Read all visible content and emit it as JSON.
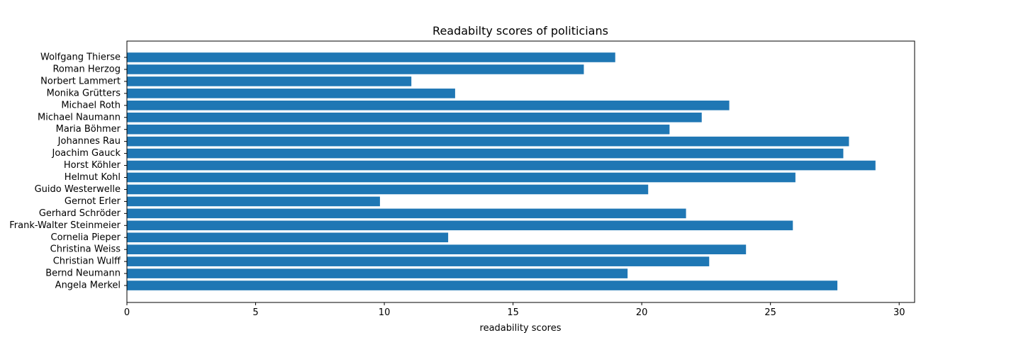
{
  "chart_data": {
    "type": "bar",
    "orientation": "horizontal",
    "title": "Readabilty scores of politicians",
    "xlabel": "readability scores",
    "ylabel": "",
    "xlim": [
      0,
      30.6
    ],
    "xticks": [
      0,
      5,
      10,
      15,
      20,
      25,
      30
    ],
    "xtick_labels": [
      "0",
      "5",
      "10",
      "15",
      "20",
      "25",
      "30"
    ],
    "grid": false,
    "legend": "none",
    "bar_color": "#1f77b4",
    "categories": [
      "Wolfgang Thierse",
      "Roman Herzog",
      "Norbert Lammert",
      "Monika Grütters",
      "Michael Roth",
      "Michael Naumann",
      "Maria Böhmer",
      "Johannes Rau",
      "Joachim Gauck",
      "Horst Köhler",
      "Helmut Kohl",
      "Guido Westerwelle",
      "Gernot Erler",
      "Gerhard Schröder",
      "Frank-Walter Steinmeier",
      "Cornelia Pieper",
      "Christina Weiss",
      "Christian Wulff",
      "Bernd Neumann",
      "Angela Merkel"
    ],
    "values": [
      18.97,
      17.75,
      11.05,
      12.75,
      23.4,
      22.33,
      21.08,
      28.05,
      27.83,
      29.08,
      25.97,
      20.25,
      9.83,
      21.72,
      25.87,
      12.48,
      24.05,
      22.62,
      19.45,
      27.6
    ]
  }
}
